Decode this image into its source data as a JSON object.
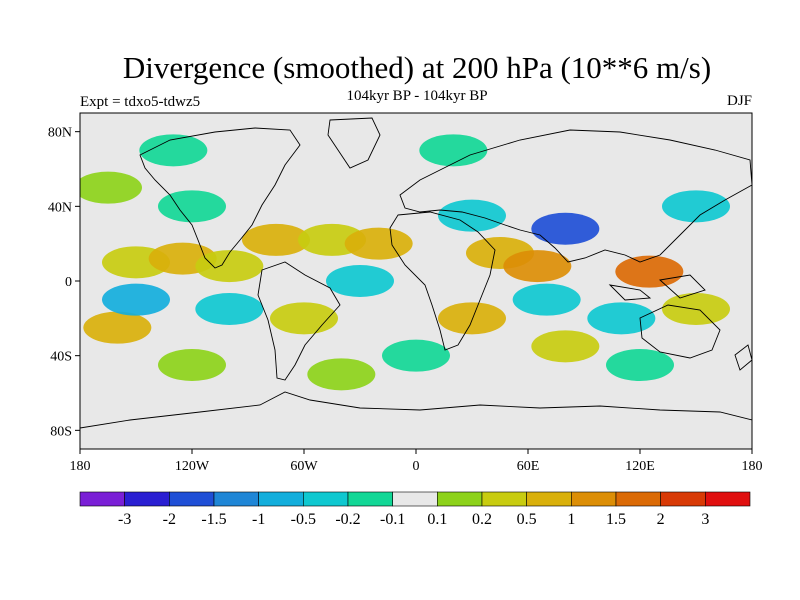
{
  "title": "Divergence (smoothed) at 200 hPa (10**6 m/s)",
  "subtitle": "104kyr BP - 104kyr BP",
  "experiment": "Expt = tdxo5-tdwz5",
  "season": "DJF",
  "lat_ticks": [
    "80N",
    "40N",
    "0",
    "40S",
    "80S"
  ],
  "lon_ticks": [
    "180",
    "120W",
    "60W",
    "0",
    "60E",
    "120E",
    "180"
  ],
  "colorbar": {
    "colors": [
      "#7a1fd6",
      "#2a1fd2",
      "#1f4fd6",
      "#1f86d6",
      "#13aedc",
      "#0fc8d0",
      "#12d796",
      "#e8e8e8",
      "#8dd21a",
      "#c8cc10",
      "#d9b00b",
      "#dc8e06",
      "#db6a05",
      "#d83a06",
      "#e00f0f"
    ],
    "labels": [
      "-3",
      "-2",
      "-1.5",
      "-1",
      "-0.5",
      "-0.2",
      "-0.1",
      "0.1",
      "0.2",
      "0.5",
      "1",
      "1.5",
      "2",
      "3"
    ]
  },
  "field_blobs": [
    {
      "lon": -165,
      "lat": 50,
      "level": "pos1"
    },
    {
      "lon": -150,
      "lat": 10,
      "level": "pos2"
    },
    {
      "lon": -125,
      "lat": 12,
      "level": "pos3"
    },
    {
      "lon": -100,
      "lat": 8,
      "level": "pos2"
    },
    {
      "lon": -75,
      "lat": 22,
      "level": "pos3"
    },
    {
      "lon": -45,
      "lat": 22,
      "level": "pos2"
    },
    {
      "lon": -20,
      "lat": 20,
      "level": "pos3"
    },
    {
      "lon": 45,
      "lat": 15,
      "level": "pos3"
    },
    {
      "lon": 65,
      "lat": 8,
      "level": "pos4"
    },
    {
      "lon": 125,
      "lat": 5,
      "level": "pos5"
    },
    {
      "lon": 150,
      "lat": -15,
      "level": "pos2"
    },
    {
      "lon": -160,
      "lat": -25,
      "level": "pos3"
    },
    {
      "lon": -60,
      "lat": -20,
      "level": "pos2"
    },
    {
      "lon": 30,
      "lat": -20,
      "level": "pos3"
    },
    {
      "lon": 80,
      "lat": -35,
      "level": "pos2"
    },
    {
      "lon": -120,
      "lat": -45,
      "level": "pos1"
    },
    {
      "lon": -40,
      "lat": -50,
      "level": "pos1"
    },
    {
      "lon": 80,
      "lat": 28,
      "level": "neg4"
    },
    {
      "lon": 70,
      "lat": -10,
      "level": "neg2"
    },
    {
      "lon": 110,
      "lat": -20,
      "level": "neg2"
    },
    {
      "lon": -150,
      "lat": -10,
      "level": "neg3"
    },
    {
      "lon": -100,
      "lat": -15,
      "level": "neg2"
    },
    {
      "lon": -30,
      "lat": 0,
      "level": "neg2"
    },
    {
      "lon": 30,
      "lat": 35,
      "level": "neg2"
    },
    {
      "lon": 150,
      "lat": 40,
      "level": "neg2"
    },
    {
      "lon": -120,
      "lat": 40,
      "level": "neg1"
    },
    {
      "lon": 0,
      "lat": -40,
      "level": "neg1"
    },
    {
      "lon": 120,
      "lat": -45,
      "level": "neg1"
    },
    {
      "lon": -130,
      "lat": 70,
      "level": "neg1"
    },
    {
      "lon": 20,
      "lat": 70,
      "level": "neg1"
    }
  ]
}
